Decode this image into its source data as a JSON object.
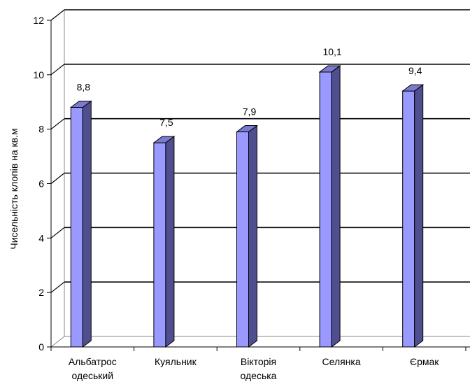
{
  "chart_data": {
    "type": "bar",
    "ylabel": "Чисельність клопів на кв.м",
    "xlabel": "",
    "ylim": [
      0,
      12
    ],
    "yticks": [
      0,
      2,
      4,
      6,
      8,
      10,
      12
    ],
    "categories": [
      [
        "Альбатрос",
        "одеський"
      ],
      [
        "Куяльник"
      ],
      [
        "Вікторія",
        "одеська"
      ],
      [
        "Селянка"
      ],
      [
        "Єрмак"
      ]
    ],
    "values": [
      8.8,
      7.5,
      7.9,
      10.1,
      9.4
    ],
    "value_labels": [
      "8,8",
      "7,5",
      "7,9",
      "10,1",
      "9,4"
    ],
    "grid": true,
    "bar_color": "#9999ff",
    "bar_side_color": "#4f4f8f",
    "bar_top_color": "#7a7ad0"
  }
}
